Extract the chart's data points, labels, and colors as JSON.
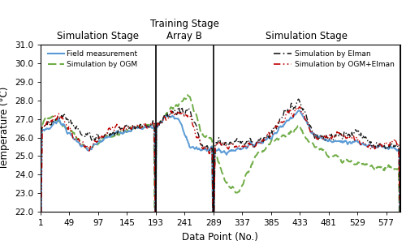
{
  "title_left": "Simulation Stage",
  "title_middle": "Training Stage\nArray B",
  "title_right": "Simulation Stage",
  "xlabel": "Data Point (No.)",
  "ylabel": "Temperature (°C)",
  "ylim": [
    22.0,
    31.0
  ],
  "xlim": [
    1,
    600
  ],
  "yticks": [
    22.0,
    23.0,
    24.0,
    25.0,
    26.0,
    27.0,
    28.0,
    29.0,
    30.0,
    31.0
  ],
  "xticks": [
    1,
    49,
    97,
    145,
    193,
    241,
    289,
    337,
    385,
    433,
    481,
    529,
    577
  ],
  "vlines": [
    1,
    193,
    289,
    600
  ],
  "legend_left": [
    {
      "label": "Field measurement",
      "color": "#5B9BD5",
      "ls": "-",
      "lw": 1.5
    },
    {
      "label": "Simulation by OGM",
      "color": "#70AD47",
      "ls": "--",
      "lw": 1.5
    }
  ],
  "legend_right": [
    {
      "label": "Simulation by Elman",
      "color": "#1a1a1a",
      "ls": "-.",
      "lw": 1.2
    },
    {
      "label": "Simulation by OGM+Elman",
      "color": "#C00000",
      "ls": "-.",
      "lw": 1.2
    }
  ],
  "field_color": "#5B9BD5",
  "ogm_color": "#70AD47",
  "elman_color": "#1a1a1a",
  "ogm_elman_color": "#C00000",
  "background_color": "#ffffff",
  "vline1_x": 1,
  "vline2_x": 193,
  "vline3_x": 289,
  "vline4_x": 600
}
